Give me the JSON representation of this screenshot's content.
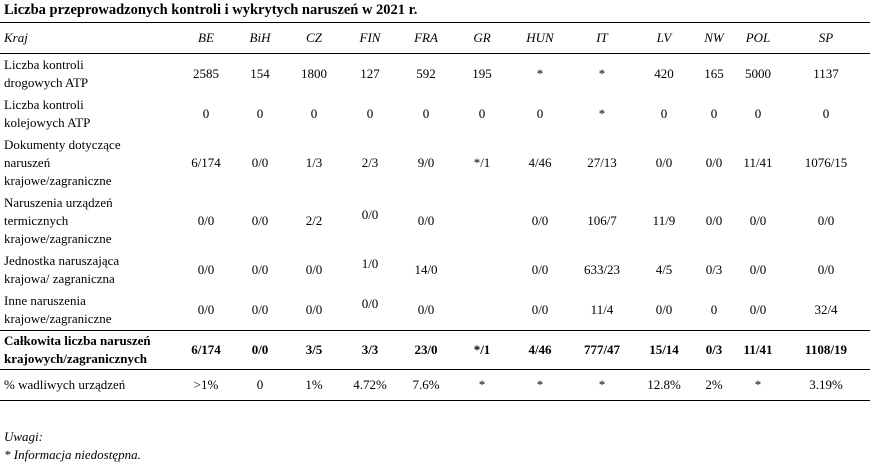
{
  "title": "Liczba przeprowadzonych kontroli i wykrytych naruszeń w 2021 r.",
  "header": {
    "row_label": "Kraj",
    "countries": [
      "BE",
      "BiH",
      "CZ",
      "FIN",
      "FRA",
      "GR",
      "HUN",
      "IT",
      "LV",
      "NW",
      "POL",
      "SP"
    ]
  },
  "rows": [
    {
      "label_lines": [
        "Liczba kontroli",
        "drogowych ATP"
      ],
      "values": [
        "2585",
        "154",
        "1800",
        "127",
        "592",
        "195",
        "*",
        "*",
        "420",
        "165",
        "5000",
        "1137"
      ]
    },
    {
      "label_lines": [
        "Liczba kontroli",
        "kolejowych ATP"
      ],
      "values": [
        "0",
        "0",
        "0",
        "0",
        "0",
        "0",
        "0",
        "*",
        "0",
        "0",
        "0",
        "0"
      ]
    },
    {
      "label_lines": [
        "Dokumenty dotyczące",
        "naruszeń",
        "krajowe/zagraniczne"
      ],
      "values": [
        "6/174",
        "0/0",
        "1/3",
        "2/3",
        "9/0",
        "*/1",
        "4/46",
        "27/13",
        "0/0",
        "0/0",
        "11/41",
        "1076/15"
      ]
    },
    {
      "label_lines": [
        "Naruszenia urządzeń",
        "termicznych",
        "krajowe/zagraniczne"
      ],
      "values": [
        "0/0",
        "0/0",
        "2/2",
        "0/0",
        "0/0",
        "",
        "0/0",
        "106/7",
        "11/9",
        "0/0",
        "0/0",
        "0/0"
      ]
    },
    {
      "label_lines": [
        "Jednostka naruszająca",
        "krajowa/ zagraniczna"
      ],
      "values": [
        "0/0",
        "0/0",
        "0/0",
        "1/0",
        "14/0",
        "",
        "0/0",
        "633/23",
        "4/5",
        "0/3",
        "0/0",
        "0/0"
      ]
    },
    {
      "label_lines": [
        "Inne naruszenia",
        "krajowe/zagraniczne"
      ],
      "values": [
        "0/0",
        "0/0",
        "0/0",
        "0/0",
        "0/0",
        "",
        "0/0",
        "11/4",
        "0/0",
        "0",
        "0/0",
        "32/4"
      ]
    }
  ],
  "total": {
    "label_lines": [
      "Całkowita liczba naruszeń",
      "krajowych/zagranicznych"
    ],
    "values": [
      "6/174",
      "0/0",
      "3/5",
      "3/3",
      "23/0",
      "*/1",
      "4/46",
      "777/47",
      "15/14",
      "0/3",
      "11/41",
      "1108/19"
    ]
  },
  "pct": {
    "label": "% wadliwych urządzeń",
    "values": [
      ">1%",
      "0",
      "1%",
      "4.72%",
      "7.6%",
      "*",
      "*",
      "*",
      "12.8%",
      "2%",
      "*",
      "3.19%"
    ]
  },
  "notes": {
    "heading": "Uwagi:",
    "line": "* Informacja niedostępna."
  }
}
